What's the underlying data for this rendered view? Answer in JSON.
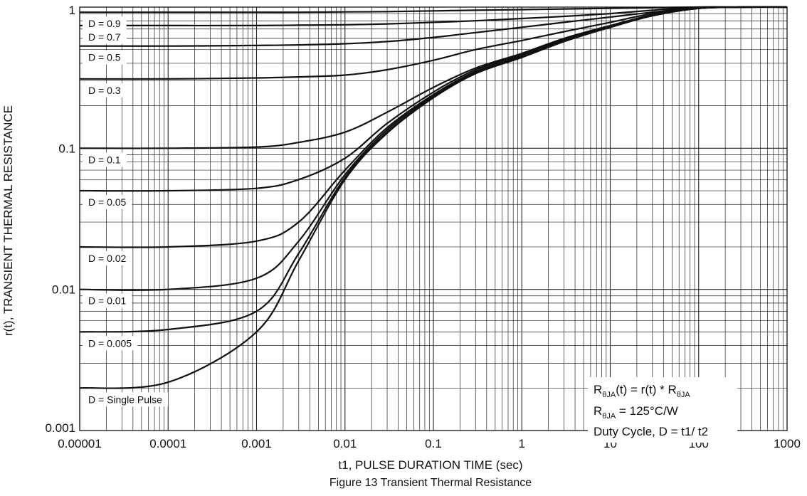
{
  "chart_data": {
    "type": "line",
    "xlabel": "t1, PULSE DURATION TIME (sec)",
    "ylabel": "r(t), TRANSIENT THERMAL RESISTANCE",
    "caption": "Figure 13 Transient Thermal Resistance",
    "xscale": "log",
    "yscale": "log",
    "xlim": [
      1e-05,
      1000
    ],
    "ylim": [
      0.001,
      1
    ],
    "grid": true,
    "x_tick_labels": [
      "0.00001",
      "0.0001",
      "0.001",
      "0.01",
      "0.1",
      "1",
      "10",
      "100",
      "1000"
    ],
    "y_tick_labels": [
      "0.001",
      "0.01",
      "0.1",
      "1"
    ],
    "x": [
      1e-05,
      0.0001,
      0.001,
      0.003,
      0.01,
      0.03,
      0.1,
      0.3,
      1,
      3,
      10,
      30,
      100,
      300,
      1000
    ],
    "series": [
      {
        "name": "D = 0.9",
        "values": [
          0.92,
          0.92,
          0.92,
          0.92,
          0.925,
          0.93,
          0.94,
          0.95,
          0.96,
          0.97,
          0.98,
          0.99,
          1.0,
          1.0,
          1.0
        ]
      },
      {
        "name": "D = 0.7",
        "values": [
          0.74,
          0.74,
          0.74,
          0.745,
          0.75,
          0.76,
          0.78,
          0.8,
          0.83,
          0.86,
          0.9,
          0.95,
          1.0,
          1.0,
          1.0
        ]
      },
      {
        "name": "D = 0.5",
        "values": [
          0.53,
          0.53,
          0.535,
          0.54,
          0.55,
          0.57,
          0.61,
          0.66,
          0.72,
          0.78,
          0.85,
          0.92,
          0.99,
          1.0,
          1.0
        ]
      },
      {
        "name": "D = 0.3",
        "values": [
          0.31,
          0.31,
          0.315,
          0.32,
          0.33,
          0.36,
          0.42,
          0.5,
          0.58,
          0.67,
          0.78,
          0.9,
          0.98,
          1.0,
          1.0
        ]
      },
      {
        "name": "D = 0.1",
        "values": [
          0.1,
          0.1,
          0.102,
          0.11,
          0.13,
          0.18,
          0.27,
          0.37,
          0.47,
          0.6,
          0.74,
          0.88,
          0.98,
          1.0,
          1.0
        ]
      },
      {
        "name": "D = 0.05",
        "values": [
          0.05,
          0.05,
          0.052,
          0.06,
          0.085,
          0.15,
          0.25,
          0.36,
          0.46,
          0.59,
          0.73,
          0.87,
          0.98,
          1.0,
          1.0
        ]
      },
      {
        "name": "D = 0.02",
        "values": [
          0.02,
          0.02,
          0.022,
          0.03,
          0.07,
          0.14,
          0.24,
          0.35,
          0.45,
          0.58,
          0.73,
          0.87,
          0.98,
          1.0,
          1.0
        ]
      },
      {
        "name": "D = 0.01",
        "values": [
          0.01,
          0.01,
          0.012,
          0.022,
          0.065,
          0.135,
          0.235,
          0.345,
          0.45,
          0.58,
          0.72,
          0.87,
          0.98,
          1.0,
          1.0
        ]
      },
      {
        "name": "D = 0.005",
        "values": [
          0.005,
          0.0052,
          0.007,
          0.018,
          0.062,
          0.13,
          0.23,
          0.34,
          0.445,
          0.575,
          0.72,
          0.87,
          0.98,
          1.0,
          1.0
        ]
      },
      {
        "name": "D = Single Pulse",
        "values": [
          0.002,
          0.0022,
          0.005,
          0.016,
          0.06,
          0.128,
          0.228,
          0.338,
          0.44,
          0.57,
          0.72,
          0.87,
          0.98,
          1.0,
          1.0
        ]
      }
    ],
    "annotation": {
      "line1_main": "R",
      "line1_sub": "θJA",
      "line1_mid": "(t) = r(t) * R",
      "line1_sub2": "θJA",
      "line2_main": "R",
      "line2_sub": "θJA",
      "line2_rest": " = 125°C/W",
      "line3": "Duty Cycle, D = t1/ t2"
    }
  }
}
